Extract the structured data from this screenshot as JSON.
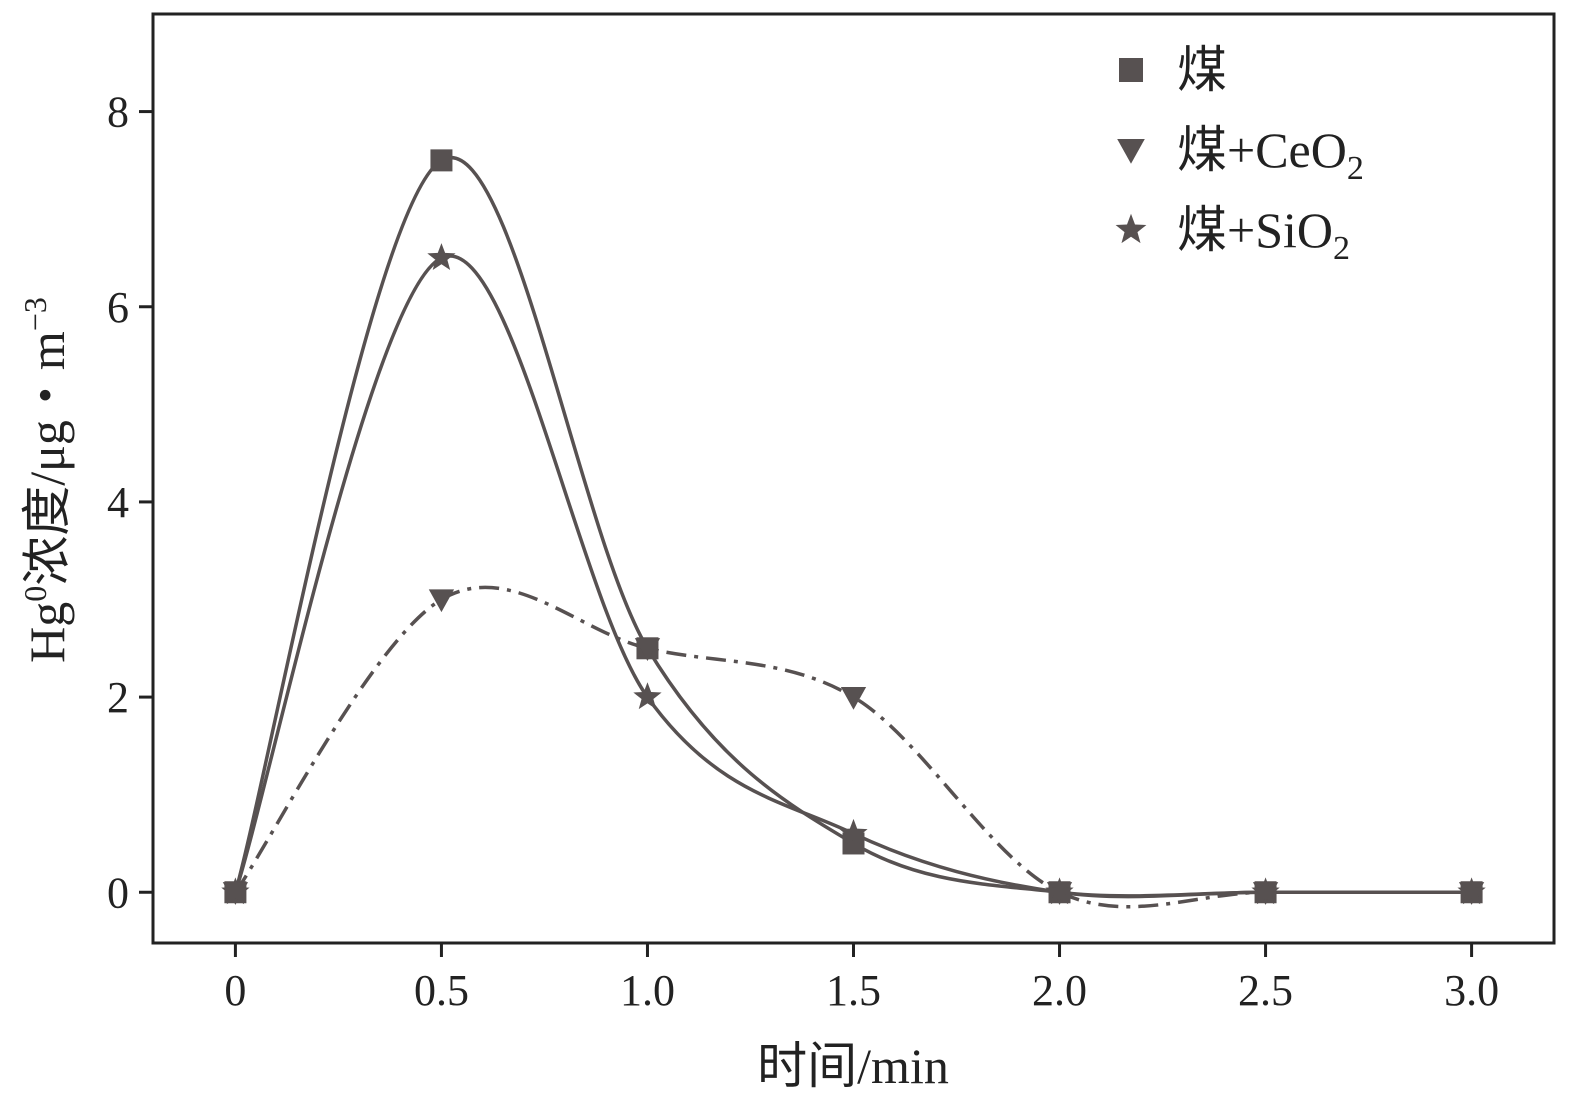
{
  "chart_data": {
    "type": "line",
    "title": "",
    "xlabel": "时间/min",
    "ylabel": {
      "prefix": "Hg",
      "sup": "0",
      "main": "浓度/μg・m",
      "sup2": "−3"
    },
    "xlim": [
      -0.2,
      3.2
    ],
    "ylim": [
      -0.52,
      9.0
    ],
    "xticks": [
      0,
      0.5,
      1.0,
      1.5,
      2.0,
      2.5,
      3.0
    ],
    "xtick_labels": [
      "0",
      "0.5",
      "1.0",
      "1.5",
      "2.0",
      "2.5",
      "3.0"
    ],
    "yticks": [
      0,
      2,
      4,
      6,
      8
    ],
    "ytick_labels": [
      "0",
      "2",
      "4",
      "6",
      "8"
    ],
    "grid": false,
    "legend_position": "top-right",
    "colors": {
      "series": "#575151",
      "frame": "#222222",
      "text": "#222222"
    },
    "series": [
      {
        "name": "煤",
        "legend_main": "煤",
        "legend_sub": "",
        "marker": "square",
        "line_style": "solid",
        "x": [
          0,
          0.5,
          1.0,
          1.5,
          2.0,
          2.5,
          3.0
        ],
        "y": [
          0,
          7.5,
          2.5,
          0.5,
          0,
          0,
          0
        ]
      },
      {
        "name": "煤+CeO2",
        "legend_main": "煤+CeO",
        "legend_sub": "2",
        "marker": "triangle-down",
        "line_style": "dash-dot",
        "x": [
          0,
          0.5,
          1.0,
          1.5,
          2.0,
          2.5,
          3.0
        ],
        "y": [
          0,
          3.0,
          2.5,
          2.0,
          0,
          0,
          0
        ]
      },
      {
        "name": "煤+SiO2",
        "legend_main": "煤+SiO",
        "legend_sub": "2",
        "marker": "star",
        "line_style": "solid",
        "x": [
          0,
          0.5,
          1.0,
          1.5,
          2.0,
          2.5,
          3.0
        ],
        "y": [
          0,
          6.5,
          2.0,
          0.6,
          0,
          0,
          0
        ]
      }
    ]
  }
}
